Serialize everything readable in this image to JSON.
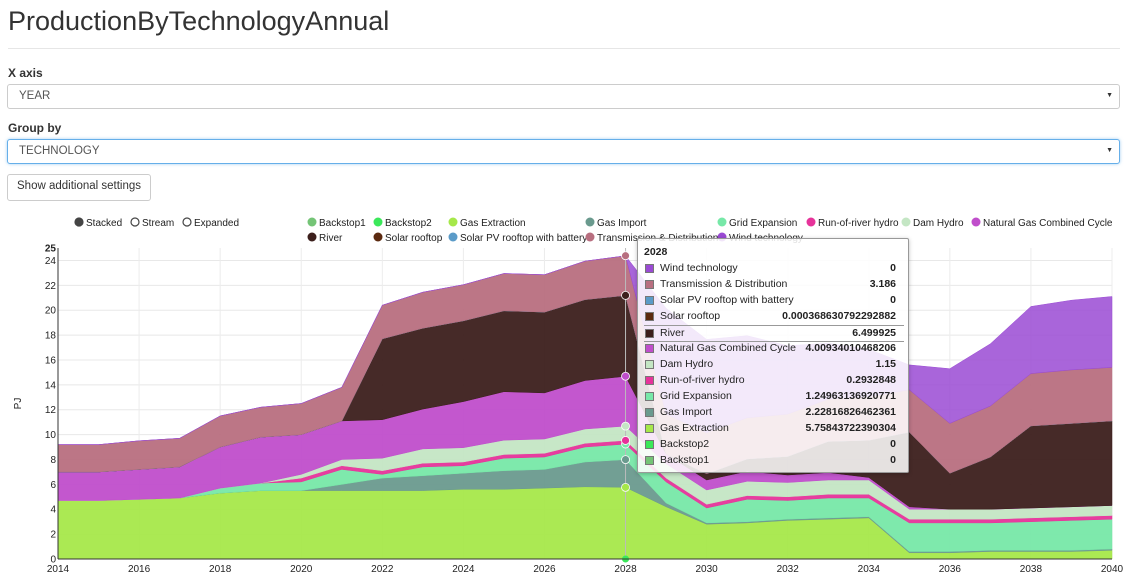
{
  "page": {
    "title": "ProductionByTechnologyAnnual",
    "xaxis_label": "X axis",
    "xaxis_value": "YEAR",
    "groupby_label": "Group by",
    "groupby_value": "TECHNOLOGY",
    "settings_button": "Show additional settings"
  },
  "colors": {
    "Backstop1": "#74c476",
    "Backstop2": "#3be85a",
    "Gas Extraction": "#a6e84a",
    "Gas Import": "#6a9a8e",
    "Grid Expansion": "#77e8a8",
    "Run-of-river hydro": "#e6339a",
    "Dam Hydro": "#c4e6c4",
    "Natural Gas Combined Cycle": "#c04ecb",
    "River": "#3c1f1c",
    "Solar rooftop": "#5c2a10",
    "Solar PV rooftop with battery": "#5b9bc8",
    "Transmission & Distribution": "#b86f80",
    "Wind technology": "#9a4ad4"
  },
  "chart_data": {
    "type": "area",
    "stacked": true,
    "modes": [
      "Stacked",
      "Stream",
      "Expanded"
    ],
    "selected_mode": "Stacked",
    "ylabel": "PJ",
    "xlabel": "",
    "ylim": [
      0,
      25
    ],
    "yticks": [
      0,
      2,
      4,
      6,
      8,
      10,
      12,
      14,
      16,
      18,
      20,
      22,
      24,
      25
    ],
    "xticks": [
      2014,
      2016,
      2018,
      2020,
      2022,
      2024,
      2026,
      2028,
      2030,
      2032,
      2034,
      2036,
      2038,
      2040
    ],
    "x": [
      2014,
      2015,
      2016,
      2017,
      2018,
      2019,
      2020,
      2021,
      2022,
      2023,
      2024,
      2025,
      2026,
      2027,
      2028,
      2029,
      2030,
      2031,
      2032,
      2033,
      2034,
      2035,
      2036,
      2037,
      2038,
      2039,
      2040
    ],
    "legend": [
      "Backstop1",
      "Backstop2",
      "Gas Extraction",
      "Gas Import",
      "Grid Expansion",
      "Run-of-river hydro",
      "Dam Hydro",
      "Natural Gas Combined Cycle",
      "River",
      "Solar rooftop",
      "Solar PV rooftop with battery",
      "Transmission & Distribution",
      "Wind technology"
    ],
    "series": [
      {
        "name": "Backstop1",
        "values": [
          0,
          0,
          0,
          0,
          0,
          0,
          0,
          0,
          0,
          0,
          0,
          0,
          0,
          0,
          0,
          0,
          0,
          0,
          0,
          0,
          0,
          0,
          0,
          0,
          0,
          0,
          0
        ]
      },
      {
        "name": "Backstop2",
        "values": [
          0,
          0,
          0,
          0,
          0,
          0,
          0,
          0,
          0,
          0,
          0,
          0,
          0,
          0,
          0,
          0,
          0,
          0,
          0,
          0,
          0,
          0,
          0,
          0,
          0,
          0,
          0
        ]
      },
      {
        "name": "Gas Extraction",
        "values": [
          4.7,
          4.7,
          4.8,
          4.9,
          5.3,
          5.5,
          5.5,
          5.5,
          5.5,
          5.5,
          5.6,
          5.6,
          5.7,
          5.8,
          5.76,
          4.2,
          2.8,
          2.9,
          3.1,
          3.2,
          3.3,
          0.5,
          0.5,
          0.6,
          0.6,
          0.6,
          0.7
        ]
      },
      {
        "name": "Gas Import",
        "values": [
          0,
          0,
          0,
          0,
          0,
          0,
          0,
          0.5,
          1.0,
          1.2,
          1.3,
          1.5,
          1.5,
          2.0,
          2.23,
          0.3,
          0.1,
          0.1,
          0.1,
          0.1,
          0.1,
          0.1,
          0.1,
          0.1,
          0.1,
          0.1,
          0.1
        ]
      },
      {
        "name": "Grid Expansion",
        "values": [
          0,
          0,
          0,
          0,
          0.4,
          0.6,
          0.7,
          1.2,
          0.3,
          0.7,
          0.6,
          1.0,
          1.0,
          1.2,
          1.25,
          1.7,
          1.2,
          1.8,
          1.5,
          1.6,
          1.5,
          2.3,
          2.3,
          2.2,
          2.3,
          2.4,
          2.4
        ]
      },
      {
        "name": "Run-of-river hydro",
        "values": [
          0,
          0,
          0,
          0,
          0,
          0,
          0.3,
          0.3,
          0.3,
          0.3,
          0.3,
          0.3,
          0.3,
          0.3,
          0.29,
          0.3,
          0.3,
          0.3,
          0.3,
          0.3,
          0.3,
          0.3,
          0.3,
          0.3,
          0.3,
          0.3,
          0.3
        ]
      },
      {
        "name": "Dam Hydro",
        "values": [
          0,
          0,
          0,
          0,
          0,
          0,
          0.3,
          0.5,
          1.0,
          1.15,
          1.15,
          1.15,
          1.15,
          1.15,
          1.15,
          1.15,
          1.15,
          1.15,
          1.15,
          1.15,
          1.15,
          0.8,
          0.8,
          0.8,
          0.8,
          0.8,
          0.8
        ]
      },
      {
        "name": "Natural Gas Combined Cycle",
        "values": [
          2.3,
          2.3,
          2.4,
          2.5,
          3.3,
          3.7,
          3.2,
          3.1,
          3.1,
          3.2,
          3.7,
          3.9,
          3.7,
          3.9,
          4.01,
          0.8,
          0.8,
          0.8,
          0.6,
          0.6,
          0.2,
          0.2,
          0,
          0,
          0,
          0,
          0
        ]
      },
      {
        "name": "River",
        "values": [
          0,
          0,
          0,
          0,
          0,
          0,
          0,
          0,
          6.5,
          6.5,
          6.5,
          6.5,
          6.5,
          6.5,
          6.5,
          0.0,
          0.5,
          1.0,
          1.5,
          2.5,
          3.0,
          6.0,
          2.9,
          4.2,
          6.6,
          6.7,
          6.8
        ]
      },
      {
        "name": "Solar rooftop",
        "values": [
          0,
          0,
          0,
          0,
          0,
          0,
          0,
          0,
          0,
          0,
          0,
          0,
          0,
          0,
          0.000368630792292882,
          0,
          0,
          0,
          0,
          0,
          0,
          0,
          0,
          0,
          0,
          0,
          0
        ]
      },
      {
        "name": "Solar PV rooftop with battery",
        "values": [
          0,
          0,
          0,
          0,
          0,
          0,
          0,
          0,
          0,
          0,
          0,
          0,
          0,
          0,
          0,
          0,
          0,
          0,
          0,
          0,
          0,
          0,
          0,
          0,
          0,
          0,
          0
        ]
      },
      {
        "name": "Transmission & Distribution",
        "values": [
          2.2,
          2.2,
          2.3,
          2.3,
          2.5,
          2.4,
          2.5,
          2.7,
          2.7,
          2.9,
          2.9,
          3.0,
          3.0,
          3.1,
          3.186,
          3.2,
          3.3,
          3.3,
          3.4,
          3.4,
          3.5,
          3.4,
          4.0,
          4.1,
          4.2,
          4.3,
          4.3
        ]
      },
      {
        "name": "Wind technology",
        "values": [
          0,
          0,
          0,
          0,
          0,
          0,
          0,
          0,
          0,
          0,
          0,
          0,
          0,
          0,
          0,
          8.5,
          7.5,
          6.6,
          5.5,
          4.5,
          3.8,
          2.0,
          4.4,
          5.0,
          5.4,
          5.6,
          5.7
        ]
      }
    ],
    "tooltip": {
      "header": "2028",
      "highlight": "River",
      "rows": [
        {
          "name": "Wind technology",
          "value": "0"
        },
        {
          "name": "Transmission & Distribution",
          "value": "3.186"
        },
        {
          "name": "Solar PV rooftop with battery",
          "value": "0"
        },
        {
          "name": "Solar rooftop",
          "value": "0.000368630792292882"
        },
        {
          "name": "River",
          "value": "6.499925"
        },
        {
          "name": "Natural Gas Combined Cycle",
          "value": "4.00934010468206"
        },
        {
          "name": "Dam Hydro",
          "value": "1.15"
        },
        {
          "name": "Run-of-river hydro",
          "value": "0.2932848"
        },
        {
          "name": "Grid Expansion",
          "value": "1.24963136920771"
        },
        {
          "name": "Gas Import",
          "value": "2.22816826462361"
        },
        {
          "name": "Gas Extraction",
          "value": "5.75843722390304"
        },
        {
          "name": "Backstop2",
          "value": "0"
        },
        {
          "name": "Backstop1",
          "value": "0"
        }
      ]
    }
  }
}
